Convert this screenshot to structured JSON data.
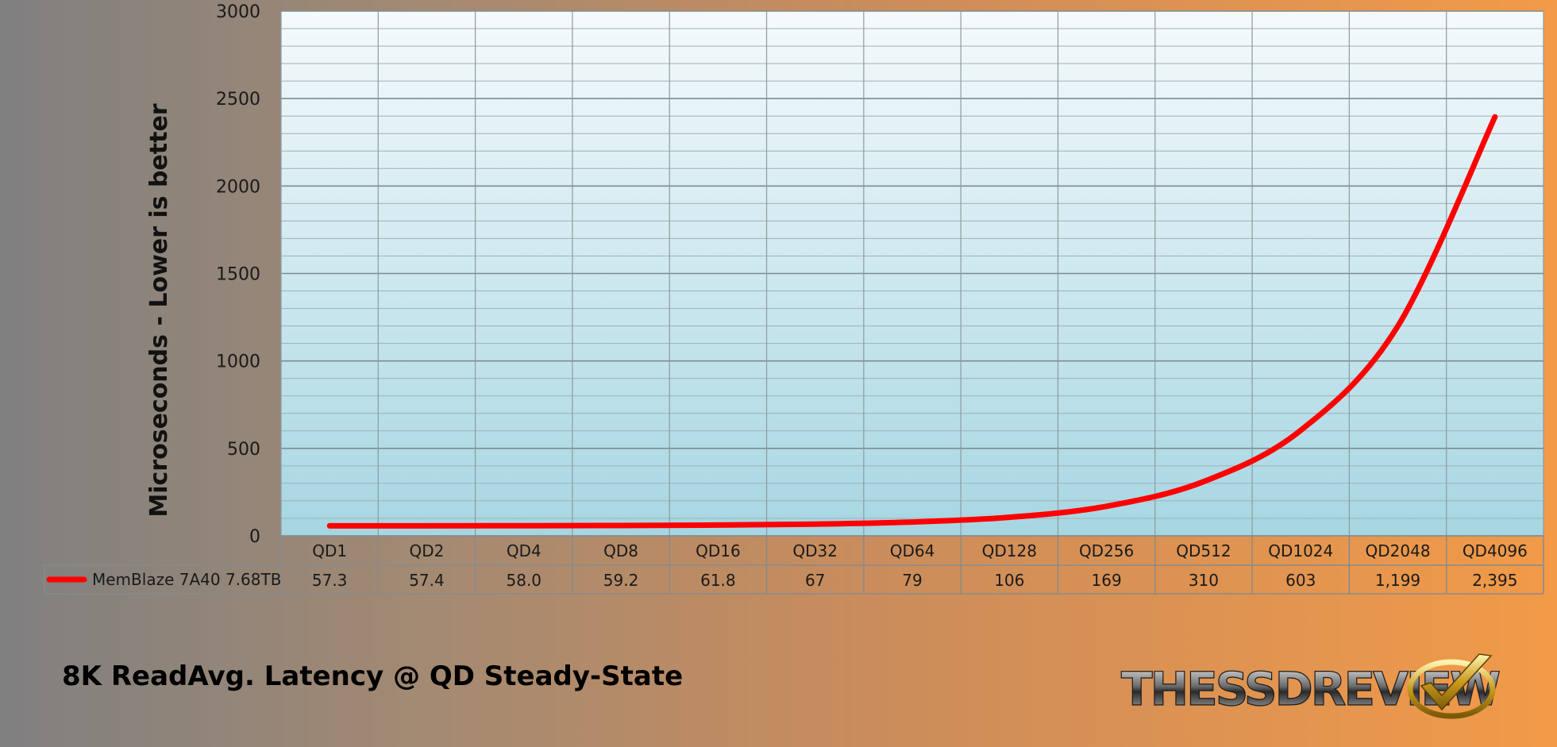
{
  "chart_data": {
    "type": "line",
    "title": "8K ReadAvg. Latency @ QD Steady-State",
    "ylabel": "Microseconds - Lower is better",
    "xlabel": "",
    "categories": [
      "QD1",
      "QD2",
      "QD4",
      "QD8",
      "QD16",
      "QD32",
      "QD64",
      "QD128",
      "QD256",
      "QD512",
      "QD1024",
      "QD2048",
      "QD4096"
    ],
    "series": [
      {
        "name": "MemBlaze 7A40 7.68TB",
        "values": [
          57.3,
          57.4,
          58.0,
          59.2,
          61.8,
          67,
          79,
          106,
          169,
          310,
          603,
          1199,
          2395
        ],
        "value_labels": [
          "57.3",
          "57.4",
          "58.0",
          "59.2",
          "61.8",
          "67",
          "79",
          "106",
          "169",
          "310",
          "603",
          "1,199",
          "2,395"
        ],
        "color": "#ff0000"
      }
    ],
    "ylim": [
      0,
      3000
    ],
    "yticks": [
      0,
      500,
      1000,
      1500,
      2000,
      2500,
      3000
    ],
    "grid": true,
    "legend": "data-table-left"
  },
  "logo": {
    "text_main": "THESSDREVIEW",
    "name": "checkmark-icon"
  },
  "colors": {
    "line": "#ff0000",
    "plot_top": "#f5fafc",
    "plot_bottom": "#a6d6e2"
  }
}
